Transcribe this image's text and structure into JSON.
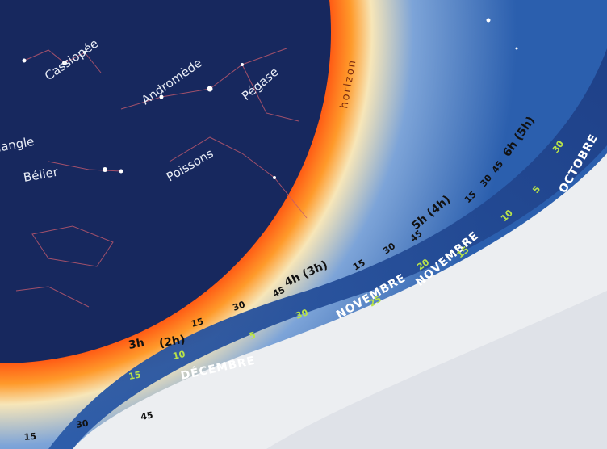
{
  "constellations": [
    "Cassiopée",
    "Andromède",
    "Pégase",
    "Triangle",
    "Bélier",
    "Poissons"
  ],
  "horizon": "horizon",
  "hours": [
    "3h",
    "(2h)",
    "4h (3h)",
    "5h (4h)",
    "6h (5h)"
  ],
  "minutes": [
    15,
    30,
    45,
    15,
    30,
    45,
    15,
    30,
    45
  ],
  "lower_minutes": [
    15,
    30,
    45
  ],
  "months": [
    "DÉCEMBRE",
    "NOVEMBRE",
    "NOVEMBRE",
    "OCTOBRE"
  ],
  "days": [
    15,
    10,
    5,
    30,
    25,
    20,
    15,
    10,
    5,
    30
  ]
}
